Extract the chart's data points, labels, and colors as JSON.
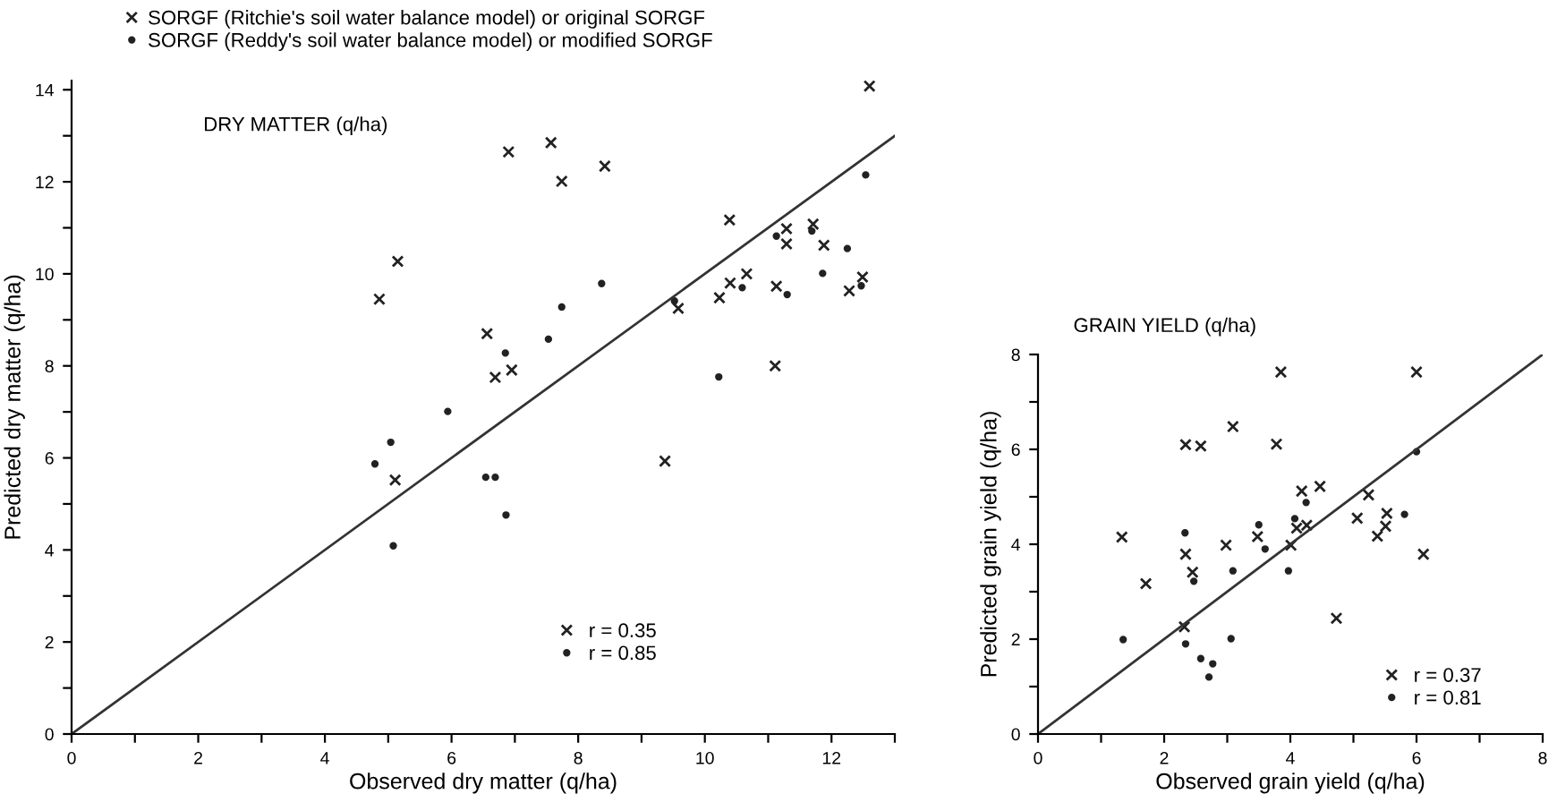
{
  "chart_data": [
    {
      "type": "scatter",
      "title": "DRY MATTER (q/ha)",
      "xlabel": "Observed dry matter (q/ha)",
      "ylabel": "Predicted dry matter (q/ha)",
      "xlim": [
        0,
        13
      ],
      "ylim": [
        0,
        14.2
      ],
      "xticks": [
        0,
        {
          "value": 1,
          "label": null
        },
        2,
        {
          "value": 3,
          "label": null
        },
        4,
        {
          "value": 5,
          "label": null
        },
        6,
        {
          "value": 7,
          "label": null
        },
        8,
        {
          "value": 9,
          "label": null
        },
        10,
        {
          "value": 11,
          "label": null
        },
        12,
        {
          "value": 13,
          "label": null
        }
      ],
      "yticks": [
        0,
        {
          "value": 1,
          "label": null
        },
        2,
        {
          "value": 3,
          "label": null
        },
        4,
        {
          "value": 5,
          "label": null
        },
        6,
        {
          "value": 7,
          "label": null
        },
        8,
        {
          "value": 9,
          "label": null
        },
        10,
        {
          "value": 11,
          "label": null
        },
        12,
        {
          "value": 13,
          "label": null
        },
        14
      ],
      "grid": false,
      "legend": "bottom",
      "annotations": [
        "SORGF (Ritchie's soil water balance model) or original SORGF",
        "SORGF (Reddy's soil water balance model) or modified SORGF"
      ],
      "series": [
        {
          "name": "r = 0.35",
          "color": "#222222",
          "marker": "cross",
          "x": [
            4.86,
            5.15,
            6.9,
            7.57,
            7.74,
            8.42,
            10.39,
            6.56,
            6.69,
            6.95,
            9.58,
            10.23,
            10.4,
            10.66,
            11.13,
            11.29,
            11.29,
            11.71,
            11.88,
            11.11,
            12.28,
            12.49,
            12.6,
            5.11,
            9.37
          ],
          "values": [
            9.45,
            10.27,
            12.65,
            12.85,
            12.01,
            12.34,
            11.17,
            8.7,
            7.75,
            7.91,
            9.25,
            9.48,
            9.8,
            10.0,
            9.73,
            10.98,
            10.65,
            11.08,
            10.62,
            8.0,
            9.63,
            9.93,
            14.08,
            5.52,
            5.93
          ]
        },
        {
          "name": "r = 0.85",
          "color": "#222222",
          "marker": "circle",
          "x": [
            6.85,
            7.53,
            7.74,
            8.37,
            9.52,
            10.59,
            11.13,
            11.3,
            11.69,
            11.86,
            12.25,
            12.47,
            12.54,
            10.22,
            4.79,
            5.04,
            5.94,
            6.54,
            6.69,
            6.86,
            5.08
          ],
          "values": [
            8.28,
            8.58,
            9.28,
            9.79,
            9.41,
            9.7,
            10.82,
            9.55,
            10.93,
            10.01,
            10.55,
            9.74,
            12.15,
            7.76,
            5.87,
            6.34,
            7.01,
            5.58,
            5.58,
            4.76,
            4.09
          ]
        },
        {
          "type": "line",
          "color": "#333333",
          "marker": "none",
          "x": [
            0,
            13
          ],
          "values": [
            0,
            13
          ]
        }
      ]
    },
    {
      "type": "scatter",
      "title": "GRAIN YIELD (q/ha)",
      "xlabel": "Observed grain yield (q/ha)",
      "ylabel": "Predicted grain yield (q/ha)",
      "xlim": [
        0,
        8
      ],
      "ylim": [
        0,
        8
      ],
      "xticks": [
        0,
        {
          "value": 1,
          "label": null
        },
        2,
        {
          "value": 3,
          "label": null
        },
        4,
        {
          "value": 5,
          "label": null
        },
        6,
        {
          "value": 7,
          "label": null
        },
        8
      ],
      "yticks": [
        0,
        {
          "value": 1,
          "label": null
        },
        2,
        {
          "value": 3,
          "label": null
        },
        4,
        {
          "value": 5,
          "label": null
        },
        6,
        {
          "value": 7,
          "label": null
        },
        8
      ],
      "grid": false,
      "legend": "bottom right",
      "series": [
        {
          "name": "r = 0.37",
          "color": "#222222",
          "marker": "cross",
          "x": [
            3.85,
            6.0,
            3.09,
            2.34,
            2.58,
            3.78,
            1.33,
            2.34,
            1.71,
            2.45,
            2.98,
            3.48,
            4.01,
            4.1,
            4.18,
            4.26,
            4.47,
            2.32,
            4.73,
            5.06,
            5.24,
            5.38,
            5.51,
            5.53,
            6.11
          ],
          "values": [
            7.63,
            7.63,
            6.48,
            6.1,
            6.07,
            6.11,
            4.15,
            3.79,
            3.17,
            3.41,
            3.98,
            4.16,
            3.98,
            4.34,
            5.12,
            4.4,
            5.22,
            2.26,
            2.44,
            4.55,
            5.04,
            4.17,
            4.38,
            4.65,
            3.79
          ]
        },
        {
          "name": "r = 0.81",
          "color": "#222222",
          "marker": "circle",
          "x": [
            1.35,
            2.33,
            2.34,
            2.58,
            2.77,
            2.71,
            2.47,
            3.09,
            3.06,
            3.5,
            3.6,
            3.97,
            4.07,
            4.25,
            5.81,
            6.0
          ],
          "values": [
            1.99,
            4.24,
            1.9,
            1.59,
            1.48,
            1.2,
            3.22,
            3.44,
            2.01,
            4.41,
            3.9,
            3.44,
            4.54,
            4.88,
            4.63,
            5.95
          ]
        },
        {
          "type": "line",
          "color": "#333333",
          "marker": "none",
          "x": [
            0,
            8
          ],
          "values": [
            0,
            8
          ]
        }
      ]
    }
  ]
}
